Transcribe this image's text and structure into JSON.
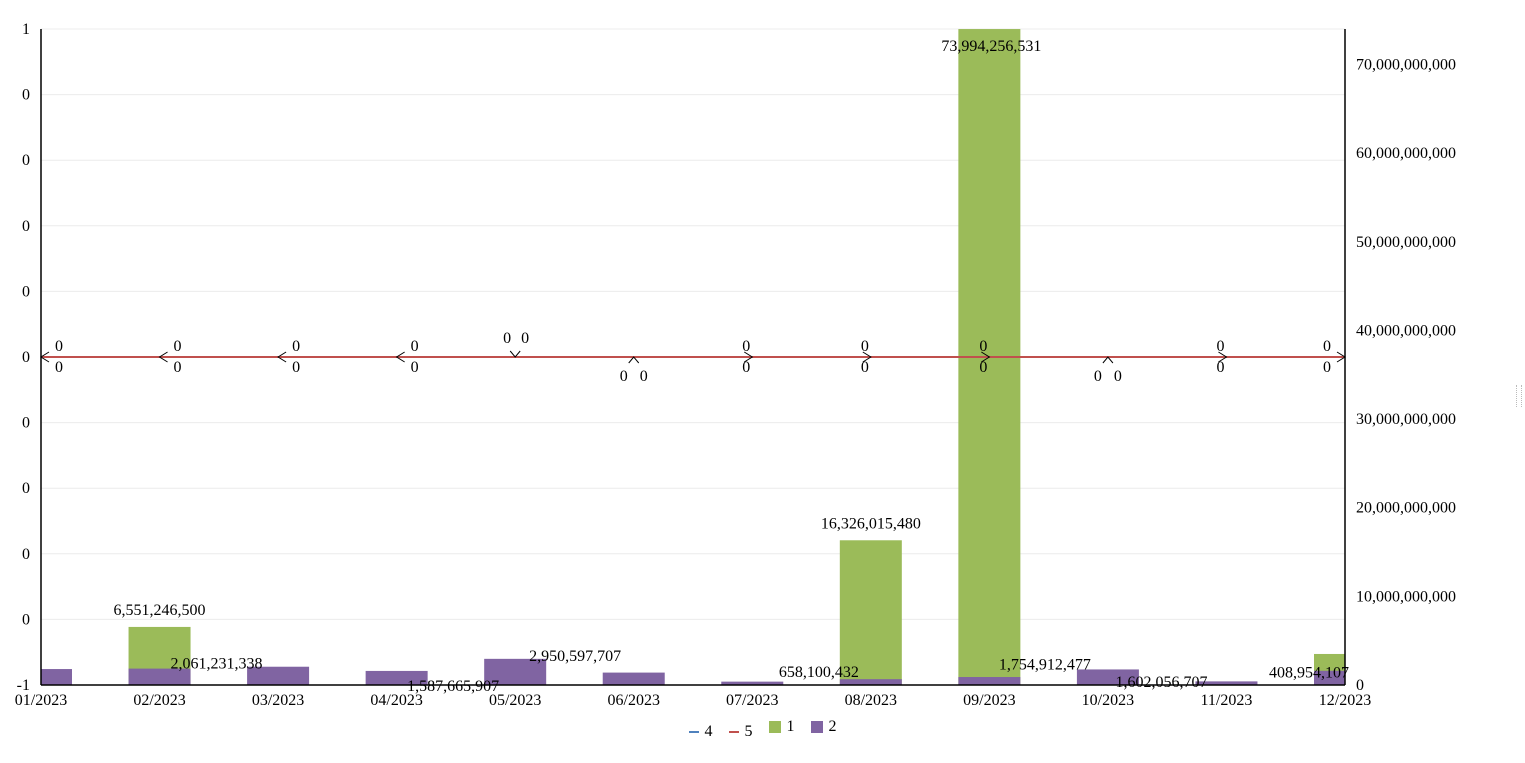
{
  "chart_data": {
    "type": "bar",
    "categories": [
      "01/2023",
      "02/2023",
      "03/2023",
      "04/2023",
      "05/2023",
      "06/2023",
      "07/2023",
      "08/2023",
      "09/2023",
      "10/2023",
      "11/2023",
      "12/2023"
    ],
    "left_axis": {
      "ylim": [
        -1,
        1
      ],
      "tick_labels": [
        "1",
        "0",
        "0",
        "0",
        "0",
        "0",
        "0",
        "0",
        "0",
        "0",
        "-1"
      ]
    },
    "right_axis": {
      "ylim": [
        0,
        74000000000
      ],
      "ticks": [
        0,
        10000000000,
        20000000000,
        30000000000,
        40000000000,
        50000000000,
        60000000000,
        70000000000
      ],
      "tick_labels": [
        "0",
        "10,000,000,000",
        "20,000,000,000",
        "30,000,000,000",
        "40,000,000,000",
        "50,000,000,000",
        "60,000,000,000",
        "70,000,000,000"
      ]
    },
    "series": [
      {
        "name": "4",
        "type": "line",
        "axis": "left",
        "color": "#4f81bd",
        "values": [
          0,
          0,
          0,
          0,
          0,
          0,
          0,
          0,
          0,
          0,
          0,
          0
        ]
      },
      {
        "name": "5",
        "type": "line",
        "axis": "left",
        "color": "#c0504d",
        "values": [
          0,
          0,
          0,
          0,
          0,
          0,
          0,
          0,
          0,
          0,
          0,
          0
        ]
      },
      {
        "name": "1",
        "type": "bar",
        "axis": "right",
        "color": "#9bbb59",
        "values": [
          0,
          6551246500,
          0,
          0,
          0,
          0,
          0,
          16326015480,
          73994256531,
          0,
          0,
          3500000000
        ]
      },
      {
        "name": "2",
        "type": "bar",
        "axis": "right",
        "color": "#8064a2",
        "values": [
          1800000000,
          1850000000,
          2061231338,
          1587665907,
          2950597707,
          1400000000,
          380000000,
          658100432,
          900000000,
          1754912477,
          408954107,
          1602056707
        ]
      }
    ],
    "data_labels": [
      {
        "text": "6,551,246,500"
      },
      {
        "text": "2,061,231,338"
      },
      {
        "text": "1,587,665,907"
      },
      {
        "text": "2,950,597,707"
      },
      {
        "text": "658,100,432"
      },
      {
        "text": "16,326,015,480"
      },
      {
        "text": "73,994,256,531"
      },
      {
        "text": "1,754,912,477"
      },
      {
        "text": "1,602,056,707"
      },
      {
        "text": "408,954,107"
      }
    ],
    "line_labels": [
      [
        "0",
        "0"
      ],
      [
        "0",
        "0"
      ],
      [
        "0",
        "0"
      ],
      [
        "0",
        "0"
      ],
      [
        "0",
        "0"
      ],
      [
        "0",
        "0"
      ],
      [
        "0",
        "0"
      ],
      [
        "0",
        "0"
      ],
      [
        "0",
        "0"
      ],
      [
        "0",
        "0"
      ],
      [
        "0",
        "0"
      ],
      [
        "0",
        "0"
      ]
    ],
    "legend": [
      "4",
      "5",
      "1",
      "2"
    ],
    "legend_placement": "bottom-center"
  }
}
